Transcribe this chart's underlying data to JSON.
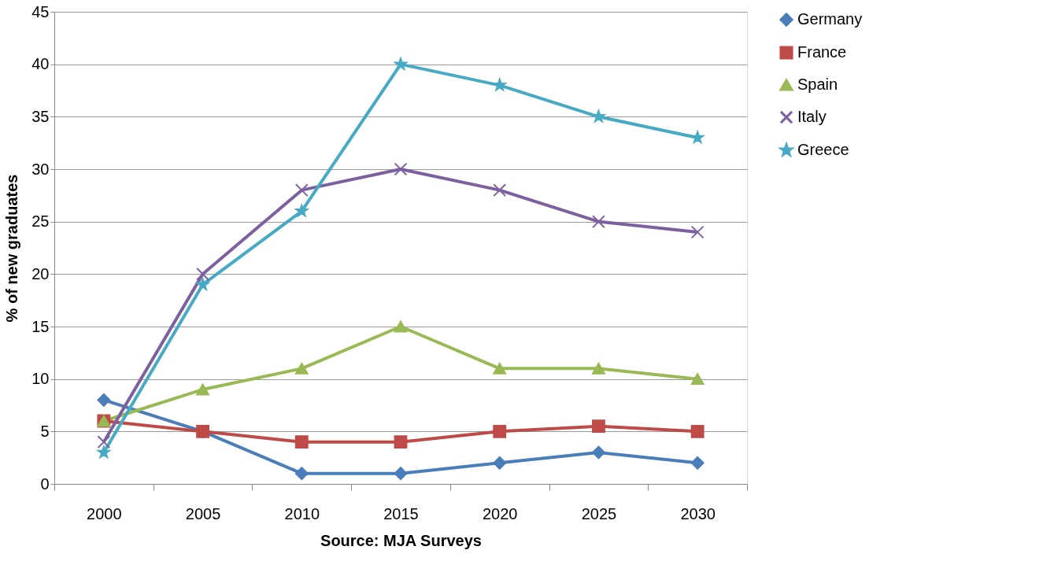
{
  "chart_data": {
    "type": "line",
    "xlabel": "Source: MJA Surveys",
    "ylabel": "% of new graduates",
    "categories": [
      "2000",
      "2005",
      "2010",
      "2015",
      "2020",
      "2025",
      "2030"
    ],
    "series": [
      {
        "name": "Germany",
        "color": "#4a7ebb",
        "marker": "diamond",
        "values": [
          8,
          5,
          1,
          1,
          2,
          3,
          2
        ]
      },
      {
        "name": "France",
        "color": "#be4b48",
        "marker": "square",
        "values": [
          6,
          5,
          4,
          4,
          5,
          5.5,
          5
        ]
      },
      {
        "name": "Spain",
        "color": "#98b954",
        "marker": "triangle",
        "values": [
          6,
          9,
          11,
          15,
          11,
          11,
          10
        ]
      },
      {
        "name": "Italy",
        "color": "#7d60a0",
        "marker": "cross",
        "values": [
          4,
          20,
          28,
          30,
          28,
          25,
          24
        ]
      },
      {
        "name": "Greece",
        "color": "#46aac5",
        "marker": "star",
        "values": [
          3,
          19,
          26,
          40,
          38,
          35,
          33
        ]
      }
    ],
    "ylim": [
      0,
      45
    ],
    "yticks": [
      0,
      5,
      10,
      15,
      20,
      25,
      30,
      35,
      40,
      45
    ],
    "grid": "y",
    "legend": "right",
    "line_style": "solid"
  }
}
